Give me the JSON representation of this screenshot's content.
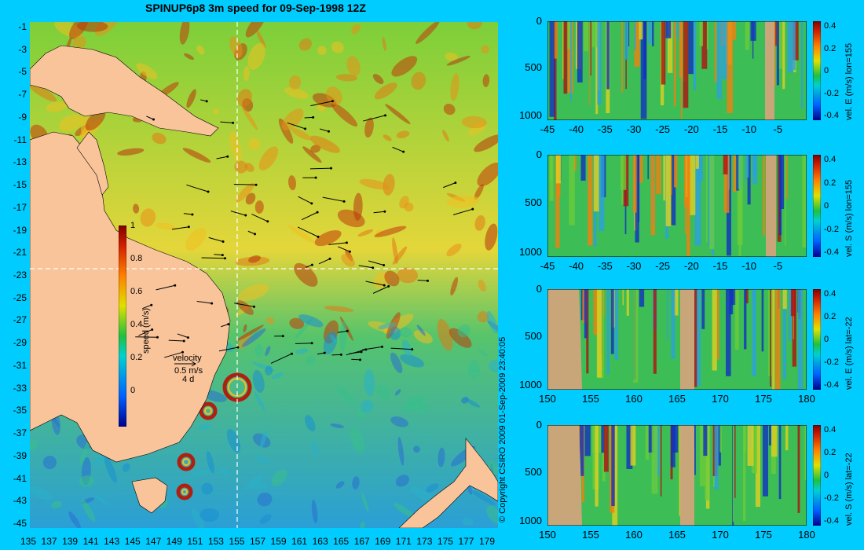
{
  "title": "SPINUP6p8 3m speed for 09-Sep-1998 12Z",
  "copyright": "© Copyright CSIRO 2009   01-Sep-2009 23:40:05",
  "map": {
    "lat_ticks": [
      "-1",
      "-3",
      "-5",
      "-7",
      "-9",
      "-11",
      "-13",
      "-15",
      "-17",
      "-19",
      "-21",
      "-23",
      "-25",
      "-27",
      "-29",
      "-31",
      "-33",
      "-35",
      "-37",
      "-39",
      "-41",
      "-43",
      "-45"
    ],
    "lon_ticks": [
      "135",
      "137",
      "139",
      "141",
      "143",
      "145",
      "147",
      "149",
      "151",
      "153",
      "155",
      "157",
      "159",
      "161",
      "163",
      "165",
      "167",
      "169",
      "171",
      "173",
      "175",
      "177",
      "179"
    ],
    "colorbar_label": "speed (m/s)",
    "colorbar_ticks": [
      "1",
      "0.8",
      "0.6",
      "0.4",
      "0.2",
      "0"
    ],
    "velocity_label": "velocity",
    "velocity_scale": "0.5 m/s",
    "velocity_time": "4 d",
    "section_lon": 155,
    "section_lat": -22,
    "land_color": "#f9c49a",
    "ocean_high_color": "#b5360b",
    "ocean_low_color": "#1a8fd0"
  },
  "chart_data": [
    {
      "type": "heatmap",
      "title": "vel. E (m/s) lon=155",
      "x_ticks": [
        "-45",
        "-40",
        "-35",
        "-30",
        "-25",
        "-20",
        "-15",
        "-10",
        "-5"
      ],
      "y_ticks": [
        "0",
        "500",
        "1000"
      ],
      "xlim": [
        -45,
        0
      ],
      "ylim": [
        0,
        1050
      ],
      "colorbar_ticks": [
        "0.4",
        "0.2",
        "0",
        "-0.2",
        "-0.4"
      ]
    },
    {
      "type": "heatmap",
      "title": "vel. S (m/s) lon=155",
      "x_ticks": [
        "-45",
        "-40",
        "-35",
        "-30",
        "-25",
        "-20",
        "-15",
        "-10",
        "-5"
      ],
      "y_ticks": [
        "0",
        "500",
        "1000"
      ],
      "xlim": [
        -45,
        0
      ],
      "ylim": [
        0,
        1050
      ],
      "colorbar_ticks": [
        "0.4",
        "0.2",
        "0",
        "-0.2",
        "-0.4"
      ]
    },
    {
      "type": "heatmap",
      "title": "vel. E (m/s) lat=-22",
      "x_ticks": [
        "150",
        "155",
        "160",
        "165",
        "170",
        "175",
        "180"
      ],
      "y_ticks": [
        "0",
        "500",
        "1000"
      ],
      "xlim": [
        150,
        180
      ],
      "ylim": [
        0,
        1050
      ],
      "colorbar_ticks": [
        "0.4",
        "0.2",
        "0",
        "-0.2",
        "-0.4"
      ]
    },
    {
      "type": "heatmap",
      "title": "vel. S (m/s) lat=-22",
      "x_ticks": [
        "150",
        "155",
        "160",
        "165",
        "170",
        "175",
        "180"
      ],
      "y_ticks": [
        "0",
        "500",
        "1000"
      ],
      "xlim": [
        150,
        180
      ],
      "ylim": [
        0,
        1050
      ],
      "colorbar_ticks": [
        "0.4",
        "0.2",
        "0",
        "-0.2",
        "-0.4"
      ]
    }
  ]
}
